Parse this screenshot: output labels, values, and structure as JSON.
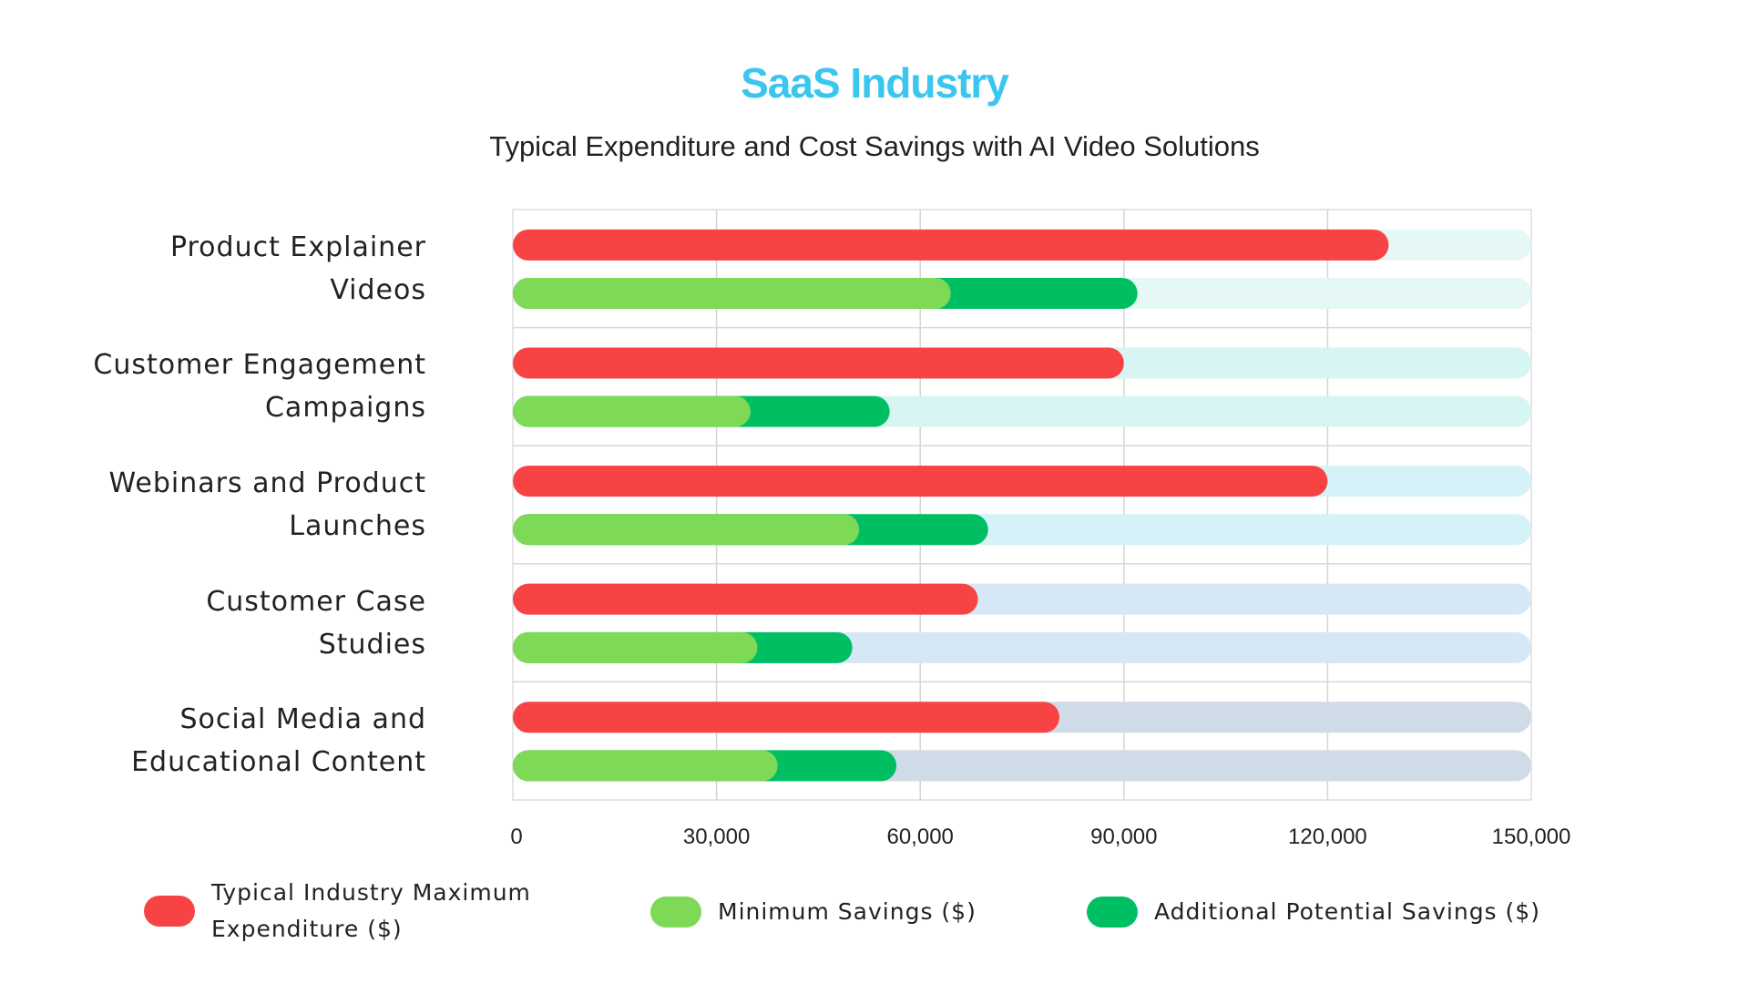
{
  "chart_data": {
    "type": "bar",
    "orientation": "horizontal",
    "stacked_secondary": true,
    "title": "SaaS Industry",
    "subtitle": "Typical Expenditure and Cost Savings with AI Video Solutions",
    "categories": [
      [
        "Product Explainer",
        "Videos"
      ],
      [
        "Customer Engagement",
        "Campaigns"
      ],
      [
        "Webinars and Product",
        "Launches"
      ],
      [
        "Customer Case",
        "Studies"
      ],
      [
        "Social Media and",
        "Educational Content"
      ]
    ],
    "series": [
      {
        "name": "Typical Industry Maximum Expenditure ($)",
        "color": "#f74343",
        "values": [
          129000,
          90000,
          120000,
          68500,
          80500
        ]
      },
      {
        "name": "Minimum Savings ($)",
        "color": "#7ed957",
        "values": [
          64500,
          35000,
          51000,
          36000,
          39000
        ]
      },
      {
        "name": "Additional Potential Savings ($)",
        "color": "#00bf63",
        "values": [
          27500,
          20500,
          19000,
          14000,
          17500
        ]
      }
    ],
    "track_colors": [
      "#e5f8f6",
      "#d7f5f3",
      "#d5f2f8",
      "#d6e8f5",
      "#cfdbe6"
    ],
    "xlim": [
      0,
      150000
    ],
    "xticks": [
      0,
      30000,
      60000,
      90000,
      120000,
      150000
    ],
    "xtick_labels": [
      "0",
      "30,000",
      "60,000",
      "90,000",
      "120,000",
      "150,000"
    ],
    "grid": true,
    "legend_position": "bottom",
    "legend_labels": [
      [
        "Typical Industry Maximum",
        "Expenditure ($)"
      ],
      [
        "Minimum Savings ($)"
      ],
      [
        "Additional Potential Savings ($)"
      ]
    ]
  }
}
